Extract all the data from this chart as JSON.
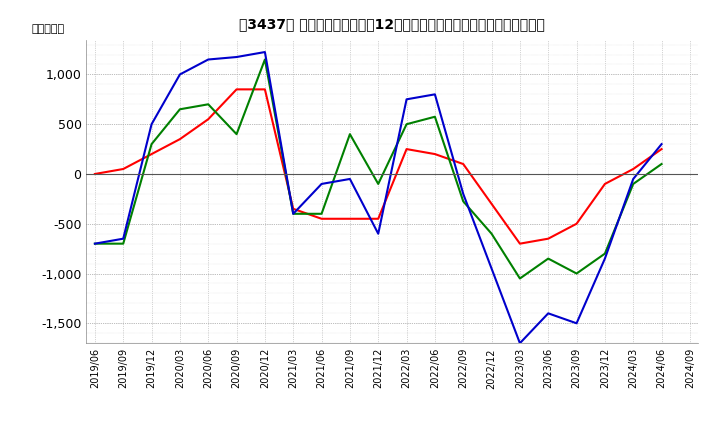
{
  "title": "［3437］ キャッシュフローの12か月移動合計の対前年同期増減額の推移",
  "ylabel": "（百万円）",
  "ylim": [
    -1700,
    1350
  ],
  "yticks": [
    -1500,
    -1000,
    -500,
    0,
    500,
    1000
  ],
  "background_color": "#ffffff",
  "plot_background": "#ffffff",
  "grid_color": "#aaaaaa",
  "dates": [
    "2019/06",
    "2019/09",
    "2019/12",
    "2020/03",
    "2020/06",
    "2020/09",
    "2020/12",
    "2021/03",
    "2021/06",
    "2021/09",
    "2021/12",
    "2022/03",
    "2022/06",
    "2022/09",
    "2022/12",
    "2023/03",
    "2023/06",
    "2023/09",
    "2023/12",
    "2024/03",
    "2024/06",
    "2024/09"
  ],
  "operating_cf": [
    0,
    50,
    200,
    350,
    550,
    850,
    850,
    -350,
    -450,
    -450,
    -450,
    250,
    200,
    100,
    -300,
    -700,
    -650,
    -500,
    -100,
    50,
    250,
    null
  ],
  "investing_cf": [
    -700,
    -700,
    300,
    650,
    700,
    400,
    1150,
    -400,
    -400,
    400,
    -100,
    500,
    575,
    -275,
    -600,
    -1050,
    -850,
    -1000,
    -800,
    -100,
    100,
    null
  ],
  "free_cf": [
    -700,
    -650,
    500,
    1000,
    1150,
    1175,
    1225,
    -400,
    -100,
    -50,
    -600,
    750,
    800,
    -200,
    -950,
    -1700,
    -1400,
    -1500,
    -850,
    -50,
    300,
    null
  ],
  "operating_color": "#ff0000",
  "investing_color": "#008000",
  "free_cf_color": "#0000cc"
}
